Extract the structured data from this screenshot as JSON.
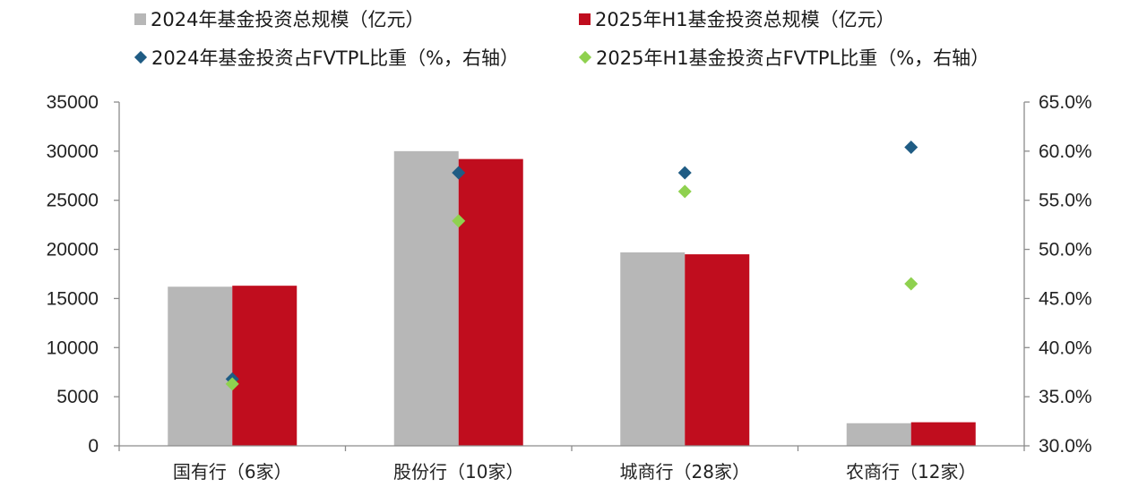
{
  "legend": {
    "items": [
      {
        "label": "2024年基金投资总规模（亿元）",
        "color": "#b7b7b7",
        "shape": "square"
      },
      {
        "label": "2025年H1基金投资总规模（亿元）",
        "color": "#c00d1e",
        "shape": "square"
      },
      {
        "label": "2024年基金投资占FVTPL比重（%，右轴）",
        "color": "#1f5c84",
        "shape": "diamond"
      },
      {
        "label": "2025年H1基金投资占FVTPL比重（%，右轴）",
        "color": "#8fd14f",
        "shape": "diamond"
      }
    ]
  },
  "chart_data": {
    "type": "bar",
    "categories": [
      "国有行（6家）",
      "股份行（10家）",
      "城商行（28家）",
      "农商行（12家）"
    ],
    "series": [
      {
        "name": "2024年基金投资总规模（亿元）",
        "type": "bar",
        "axis": "left",
        "color": "#b7b7b7",
        "values": [
          16200,
          30000,
          19700,
          2300
        ]
      },
      {
        "name": "2025年H1基金投资总规模（亿元）",
        "type": "bar",
        "axis": "left",
        "color": "#c00d1e",
        "values": [
          16300,
          29200,
          19500,
          2400
        ]
      },
      {
        "name": "2024年基金投资占FVTPL比重（%，右轴）",
        "type": "scatter",
        "axis": "right",
        "color": "#1f5c84",
        "values": [
          36.8,
          57.8,
          57.8,
          60.4
        ]
      },
      {
        "name": "2025年H1基金投资占FVTPL比重（%，右轴）",
        "type": "scatter",
        "axis": "right",
        "color": "#8fd14f",
        "values": [
          36.3,
          52.9,
          55.9,
          46.5
        ]
      }
    ],
    "y_left": {
      "min": 0,
      "max": 35000,
      "ticks": [
        "0",
        "5000",
        "10000",
        "15000",
        "20000",
        "25000",
        "30000",
        "35000"
      ]
    },
    "y_right": {
      "min": 30,
      "max": 65,
      "ticks": [
        "30.0%",
        "35.0%",
        "40.0%",
        "45.0%",
        "50.0%",
        "55.0%",
        "60.0%",
        "65.0%"
      ]
    },
    "grid": false
  }
}
